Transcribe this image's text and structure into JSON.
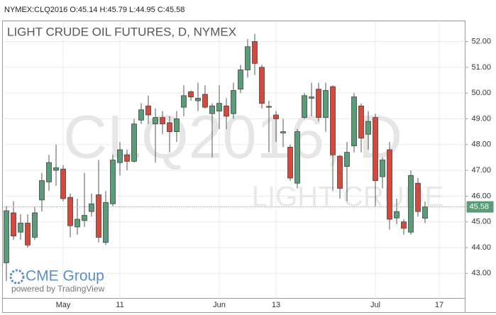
{
  "chart_data": {
    "type": "candlestick",
    "header": "NYMEX:CLQ2016 O:45.14 H:45.79 L:44.95 C:45.58",
    "title": "LIGHT CRUDE OIL FUTURES, D, NYMEX",
    "watermark": "CLQ2016, D",
    "watermark_subtitle": "LIGHT CRUDE",
    "logo": "CME Group",
    "logo_subtitle": "powered by TradingView",
    "categories": [
      null,
      null,
      null,
      null,
      null,
      null,
      null,
      null,
      "May",
      null,
      null,
      null,
      null,
      null,
      null,
      null,
      "11",
      null,
      null,
      null,
      null,
      null,
      null,
      null,
      null,
      null,
      null,
      null,
      null,
      null,
      "Jun",
      null,
      null,
      null,
      null,
      null,
      null,
      null,
      "13",
      null,
      null,
      null,
      null,
      null,
      null,
      null,
      null,
      null,
      null,
      null,
      null,
      null,
      "Jul",
      null,
      null,
      null,
      null,
      null,
      null,
      null,
      null,
      "17"
    ],
    "open": [
      43.41,
      45.35,
      44.6,
      44.95,
      44.4,
      45.85,
      46.55,
      47.0,
      47.05,
      45.95,
      44.8,
      45.05,
      45.4,
      46.05,
      44.2,
      45.7,
      47.3,
      47.6,
      47.35,
      48.95,
      49.5,
      48.8,
      49.05,
      48.85,
      48.5,
      49.45,
      50.05,
      49.7,
      49.95,
      49.2,
      49.3,
      49.5,
      49.2,
      50.15,
      50.9,
      52.0,
      51.0,
      49.48,
      49.15,
      48.45,
      47.9,
      46.5,
      49.05,
      49.8,
      50.15,
      49.05,
      50.25,
      47.55,
      47.15,
      47.95,
      49.5,
      48.4,
      49.05,
      46.75,
      47.8,
      45.15,
      45.0,
      44.6,
      46.5,
      45.14,
      null,
      null
    ],
    "high": [
      45.6,
      45.8,
      45.3,
      45.3,
      45.6,
      46.9,
      47.6,
      48.0,
      47.2,
      46.1,
      45.9,
      46.9,
      46.1,
      47.4,
      46.2,
      47.6,
      48.1,
      47.8,
      49.0,
      49.6,
      49.9,
      49.4,
      49.3,
      49.1,
      49.3,
      50.3,
      50.1,
      50.4,
      50.3,
      49.6,
      50.3,
      49.8,
      50.4,
      51.1,
      52.1,
      52.3,
      51.1,
      49.7,
      49.3,
      49.0,
      48.0,
      48.6,
      50.0,
      50.4,
      50.4,
      50.4,
      50.3,
      47.6,
      48.1,
      50.0,
      49.6,
      49.3,
      49.2,
      47.5,
      48.1,
      45.9,
      45.1,
      47.0,
      46.7,
      45.79,
      null,
      null
    ],
    "low": [
      42.7,
      44.3,
      44.3,
      44.0,
      44.3,
      45.4,
      46.2,
      46.4,
      45.8,
      44.4,
      44.5,
      44.8,
      45.2,
      44.2,
      44.1,
      45.6,
      46.8,
      47.0,
      47.3,
      48.8,
      48.8,
      47.3,
      48.4,
      47.7,
      48.1,
      49.1,
      49.7,
      49.3,
      49.4,
      47.5,
      48.6,
      48.6,
      49.0,
      50.0,
      50.6,
      50.7,
      49.4,
      47.7,
      48.1,
      47.9,
      46.6,
      46.3,
      49.0,
      49.1,
      48.9,
      48.5,
      46.2,
      45.9,
      45.8,
      47.7,
      47.7,
      47.8,
      45.6,
      46.3,
      44.7,
      44.9,
      44.5,
      44.5,
      45.2,
      44.95,
      null,
      null
    ],
    "close": [
      45.43,
      44.45,
      44.95,
      44.1,
      45.35,
      46.6,
      47.3,
      47.1,
      45.9,
      44.85,
      45.1,
      45.25,
      45.7,
      44.4,
      45.75,
      47.4,
      47.8,
      47.35,
      48.8,
      49.35,
      49.15,
      49.05,
      48.8,
      48.5,
      49.0,
      49.9,
      49.85,
      49.8,
      49.45,
      49.5,
      49.6,
      49.1,
      50.1,
      50.9,
      51.8,
      51.15,
      49.6,
      49.45,
      49.0,
      48.5,
      46.7,
      48.5,
      49.9,
      49.85,
      49.05,
      50.1,
      47.6,
      46.3,
      47.7,
      49.85,
      48.25,
      48.9,
      46.6,
      47.4,
      45.1,
      45.4,
      44.75,
      46.8,
      45.4,
      45.58,
      null,
      null
    ],
    "up_color": "#5a9b78",
    "down_color": "#d4493b",
    "last_price": {
      "value": 45.58,
      "label": "45.58"
    },
    "ylim": [
      42.03,
      52.8
    ],
    "yticks": [
      {
        "value": 43,
        "label": "43.00"
      },
      {
        "value": 44,
        "label": "44.00"
      },
      {
        "value": 45,
        "label": "45.00"
      },
      {
        "value": 46,
        "label": "46.00"
      },
      {
        "value": 47,
        "label": "47.00"
      },
      {
        "value": 48,
        "label": "48.00"
      },
      {
        "value": 49,
        "label": "49.00"
      },
      {
        "value": 50,
        "label": "50.00"
      },
      {
        "value": 51,
        "label": "51.00"
      },
      {
        "value": 52,
        "label": "52.00"
      }
    ],
    "grid": true
  }
}
